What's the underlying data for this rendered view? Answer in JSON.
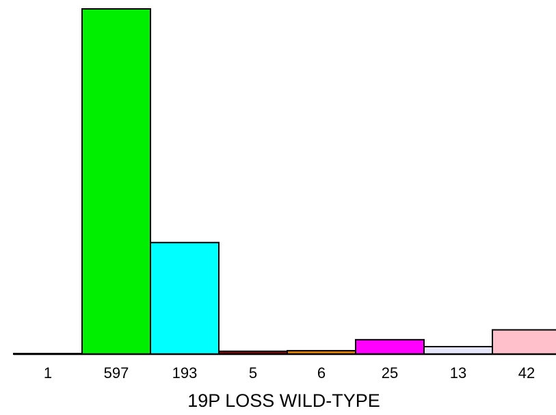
{
  "chart_data": {
    "type": "bar",
    "categories": [
      "1",
      "597",
      "193",
      "5",
      "6",
      "25",
      "13",
      "42"
    ],
    "values": [
      1,
      597,
      193,
      5,
      6,
      25,
      13,
      42
    ],
    "colors": [
      "#000000",
      "#00ee00",
      "#00ffff",
      "#8b0000",
      "#e08000",
      "#ff00ff",
      "#e6e6fa",
      "#ffc0cb"
    ],
    "xlabel": "19P LOSS WILD-TYPE",
    "ylabel": "",
    "title": "",
    "ylim": [
      0,
      597
    ],
    "grid": false
  }
}
